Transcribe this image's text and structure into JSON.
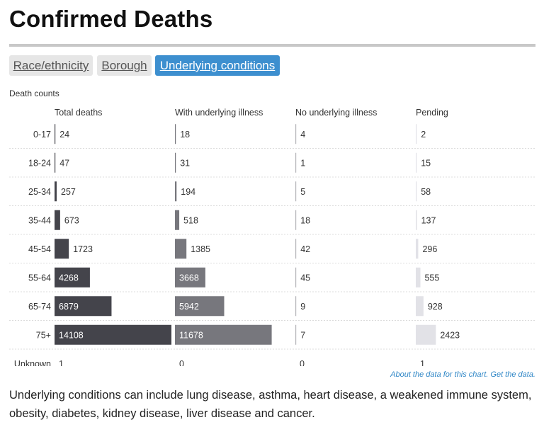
{
  "page": {
    "title": "Confirmed Deaths",
    "section_label": "Death counts",
    "about_text": "About the data for this chart.",
    "get_data_text": "Get the data.",
    "footnote": "Underlying conditions can include lung disease, asthma, heart disease, a weakened immune system, obesity, diabetes, kidney disease, liver disease and cancer."
  },
  "tabs": [
    {
      "label": "Race/ethnicity",
      "active": false
    },
    {
      "label": "Borough",
      "active": false
    },
    {
      "label": "Underlying conditions",
      "active": true
    }
  ],
  "colors": {
    "tab_active": "#3d8fcf",
    "tab_inactive": "#e6e6e6",
    "bar_total": "#44444b",
    "bar_underlying": "#77777d",
    "bar_no_underlying": "#b4b4b8",
    "bar_pending": "#e2e2e7",
    "link": "#2e86c6"
  },
  "chart_data": {
    "type": "bar",
    "orientation": "horizontal",
    "title": "",
    "categories": [
      "0-17",
      "18-24",
      "25-34",
      "35-44",
      "45-54",
      "55-64",
      "65-74",
      "75+",
      "Unknown"
    ],
    "series": [
      {
        "name": "Total deaths",
        "values": [
          24,
          47,
          257,
          673,
          1723,
          4268,
          6879,
          14108,
          1
        ]
      },
      {
        "name": "With underlying illness",
        "values": [
          18,
          31,
          194,
          518,
          1385,
          3668,
          5942,
          11678,
          0
        ]
      },
      {
        "name": "No underlying illness",
        "values": [
          4,
          1,
          5,
          18,
          42,
          45,
          9,
          7,
          0
        ]
      },
      {
        "name": "Pending",
        "values": [
          2,
          15,
          58,
          137,
          296,
          555,
          928,
          2423,
          1
        ]
      }
    ],
    "scale_max": 14108,
    "unbarred_categories": [
      "Unknown"
    ],
    "grid": false
  }
}
